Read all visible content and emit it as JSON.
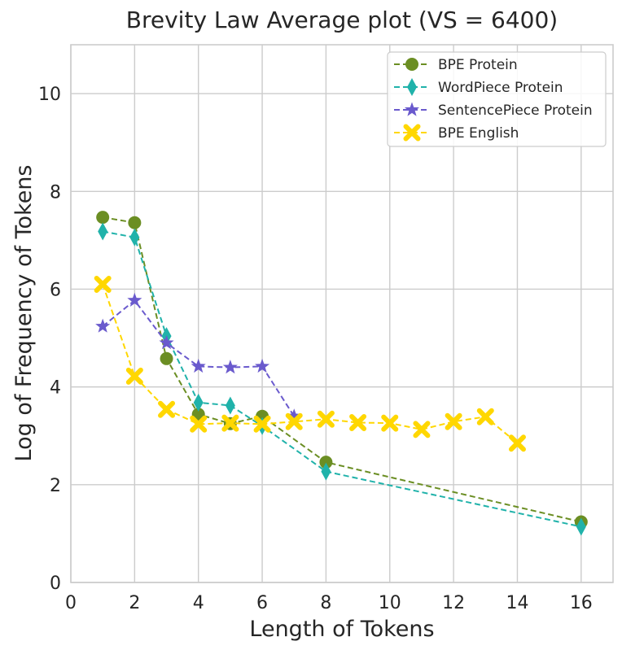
{
  "chart_data": {
    "type": "line",
    "title": "Brevity Law Average plot (VS = 6400)",
    "xlabel": "Length of Tokens",
    "ylabel": "Log of Frequency of Tokens",
    "xlim": [
      0,
      17
    ],
    "ylim": [
      0,
      11
    ],
    "xticks": [
      0,
      2,
      4,
      6,
      8,
      10,
      12,
      14,
      16
    ],
    "yticks": [
      0,
      2,
      4,
      6,
      8,
      10
    ],
    "grid": true,
    "legend_position": "top-right",
    "series": [
      {
        "name": "BPE Protein",
        "color": "#6b8e23",
        "marker": "circle",
        "x": [
          1,
          2,
          3,
          4,
          5,
          6,
          8,
          16
        ],
        "y": [
          7.47,
          7.36,
          4.58,
          3.44,
          3.25,
          3.4,
          2.46,
          1.24
        ]
      },
      {
        "name": "WordPiece Protein",
        "color": "#20b2aa",
        "marker": "thin_diamond",
        "x": [
          1,
          2,
          3,
          4,
          5,
          6,
          8,
          16
        ],
        "y": [
          7.18,
          7.06,
          5.04,
          3.68,
          3.62,
          3.2,
          2.27,
          1.14
        ]
      },
      {
        "name": "SentencePiece Protein",
        "color": "#6a5acd",
        "marker": "star",
        "x": [
          1,
          2,
          3,
          4,
          5,
          6,
          7
        ],
        "y": [
          5.24,
          5.77,
          4.9,
          4.42,
          4.4,
          4.42,
          3.4
        ]
      },
      {
        "name": "BPE English",
        "color": "#ffd700",
        "marker": "x",
        "x": [
          1,
          2,
          3,
          4,
          5,
          6,
          7,
          8,
          9,
          10,
          11,
          12,
          13,
          14
        ],
        "y": [
          6.1,
          4.22,
          3.54,
          3.24,
          3.26,
          3.24,
          3.29,
          3.34,
          3.27,
          3.26,
          3.13,
          3.29,
          3.39,
          2.85
        ]
      }
    ]
  }
}
